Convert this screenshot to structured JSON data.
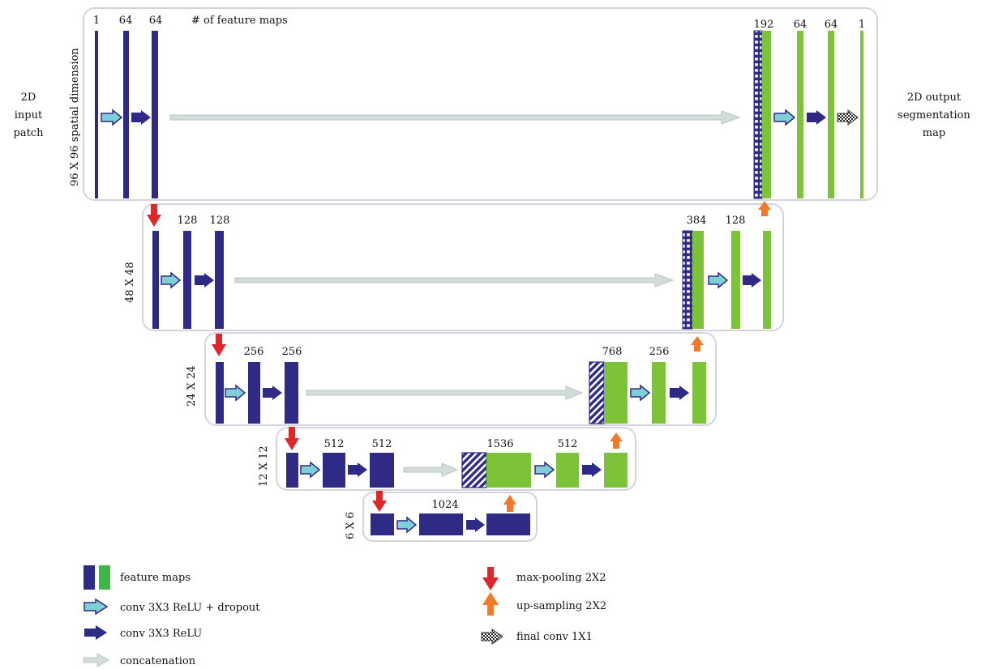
{
  "colors": {
    "encoder_blue": "#2e2a85",
    "decoder_green": "#7dc33a",
    "conv_dropout_fill": "#7fd0d6",
    "conv_relu": "#2e2a85",
    "concat": "#c9d6d4",
    "maxpool": "#e0262a",
    "upsample": "#f07a2a",
    "level_box_border": "#d0d0dc"
  },
  "header_label": "# of feature maps",
  "input_label": [
    "2D",
    "input",
    "patch"
  ],
  "output_label": [
    "2D output",
    "segmentation",
    "map"
  ],
  "levels": [
    {
      "dim": "96 X 96 spatial dimension",
      "enc_counts": [
        "1",
        "64",
        "64"
      ],
      "dec_counts": [
        "192",
        "64",
        "64",
        "1"
      ]
    },
    {
      "dim": "48 X 48",
      "enc_counts": [
        "128",
        "128"
      ],
      "dec_counts": [
        "384",
        "128"
      ]
    },
    {
      "dim": "24 X 24",
      "enc_counts": [
        "256",
        "256"
      ],
      "dec_counts": [
        "768",
        "256"
      ]
    },
    {
      "dim": "12 X 12",
      "enc_counts": [
        "512",
        "512"
      ],
      "dec_counts": [
        "1536",
        "512"
      ]
    },
    {
      "dim": "6 X 6",
      "enc_counts": [
        "1024"
      ],
      "dec_counts": []
    }
  ],
  "legend": {
    "feature_maps": "feature maps",
    "conv_dropout": "conv 3X3 ReLU + dropout",
    "conv_relu": "conv 3X3 ReLU",
    "concatenation": "concatenation",
    "max_pooling": "max-pooling 2X2",
    "up_sampling": "up-sampling 2X2",
    "final_conv": "final conv 1X1"
  }
}
